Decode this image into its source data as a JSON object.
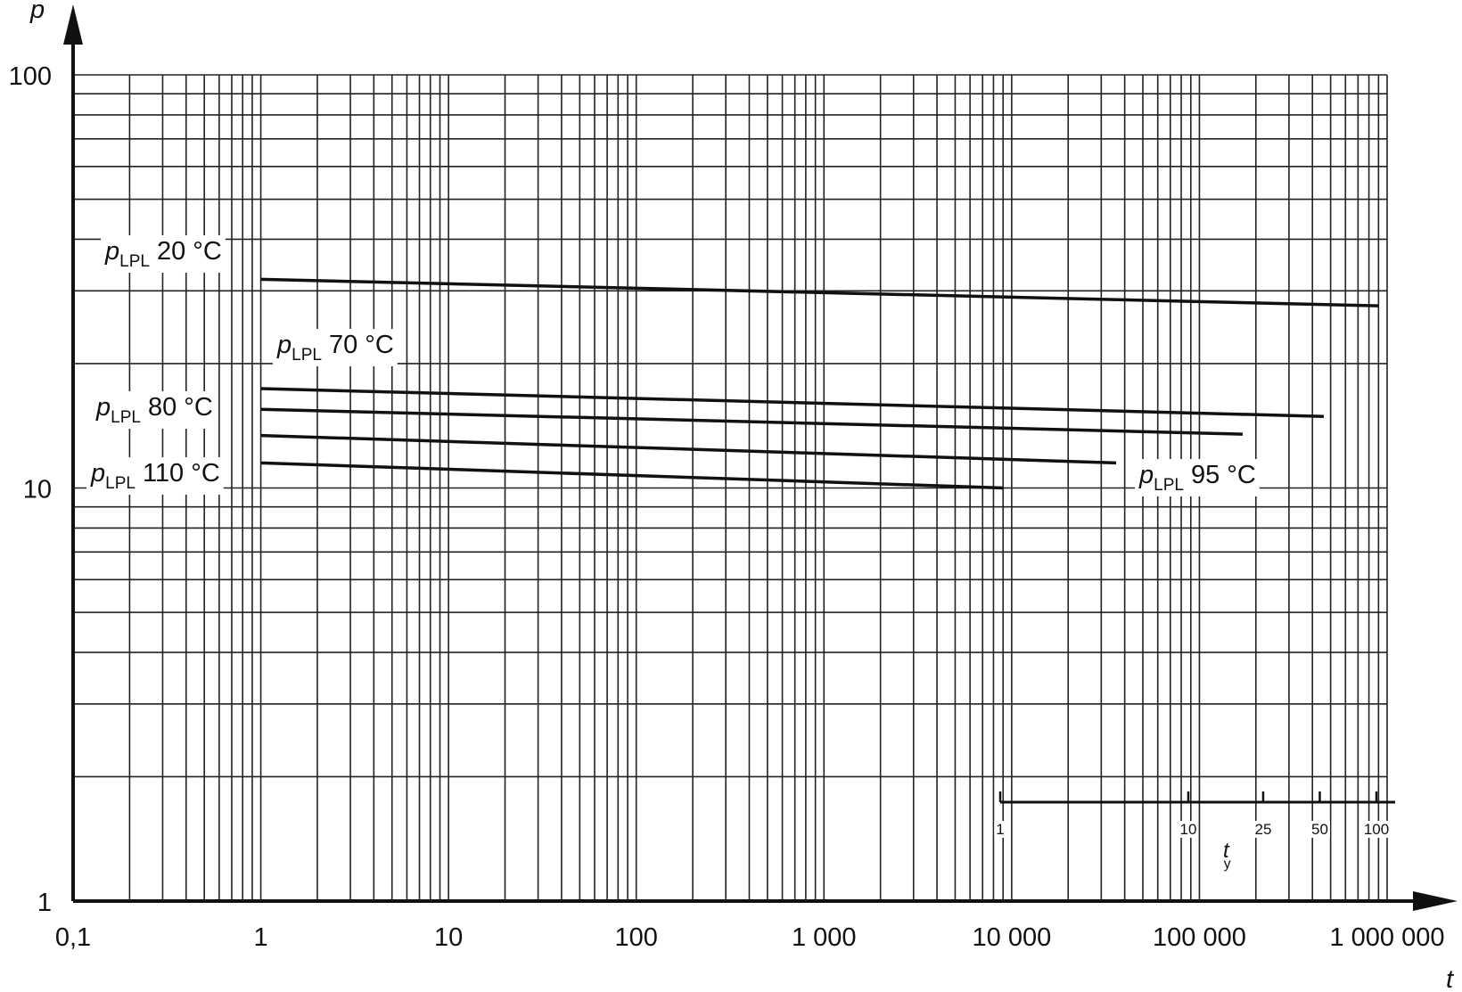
{
  "chart_data": {
    "type": "line",
    "x_label": "t",
    "y_label": "p",
    "series_symbol": "p",
    "series_subscript": "LPL",
    "xscale": "log",
    "yscale": "log",
    "grid": true,
    "minor_grid": true,
    "xlim": [
      0.1,
      1000000
    ],
    "ylim": [
      1,
      100
    ],
    "xticks": [
      {
        "value": 0.1,
        "label": "0,1"
      },
      1,
      10,
      100,
      {
        "value": 1000,
        "label": "1 000"
      },
      {
        "value": 10000,
        "label": "10 000"
      },
      {
        "value": 100000,
        "label": "100 000"
      },
      {
        "value": 1000000,
        "label": "1 000 000"
      }
    ],
    "yticks": [
      1,
      10,
      100
    ],
    "x2_label": "t",
    "x2_label_subscript": "y",
    "x2lim": [
      1,
      100
    ],
    "x2ticks": [
      1,
      10,
      25,
      50,
      100
    ],
    "series": [
      {
        "name": "20 °C",
        "color": "#111111",
        "x": [
          1,
          1000,
          900000
        ],
        "values": [
          32,
          29.7,
          27.6
        ]
      },
      {
        "name": "70 °C",
        "color": "#111111",
        "x": [
          1,
          460000
        ],
        "values": [
          17.4,
          14.9
        ]
      },
      {
        "name": "80 °C",
        "color": "#111111",
        "x": [
          1,
          170000
        ],
        "values": [
          15.5,
          13.5
        ]
      },
      {
        "name": "95 °C",
        "color": "#111111",
        "x": [
          1,
          36000
        ],
        "values": [
          13.4,
          11.5
        ]
      },
      {
        "name": "110 °C",
        "color": "#111111",
        "x": [
          1,
          9000
        ],
        "values": [
          11.5,
          10.0
        ]
      }
    ]
  }
}
